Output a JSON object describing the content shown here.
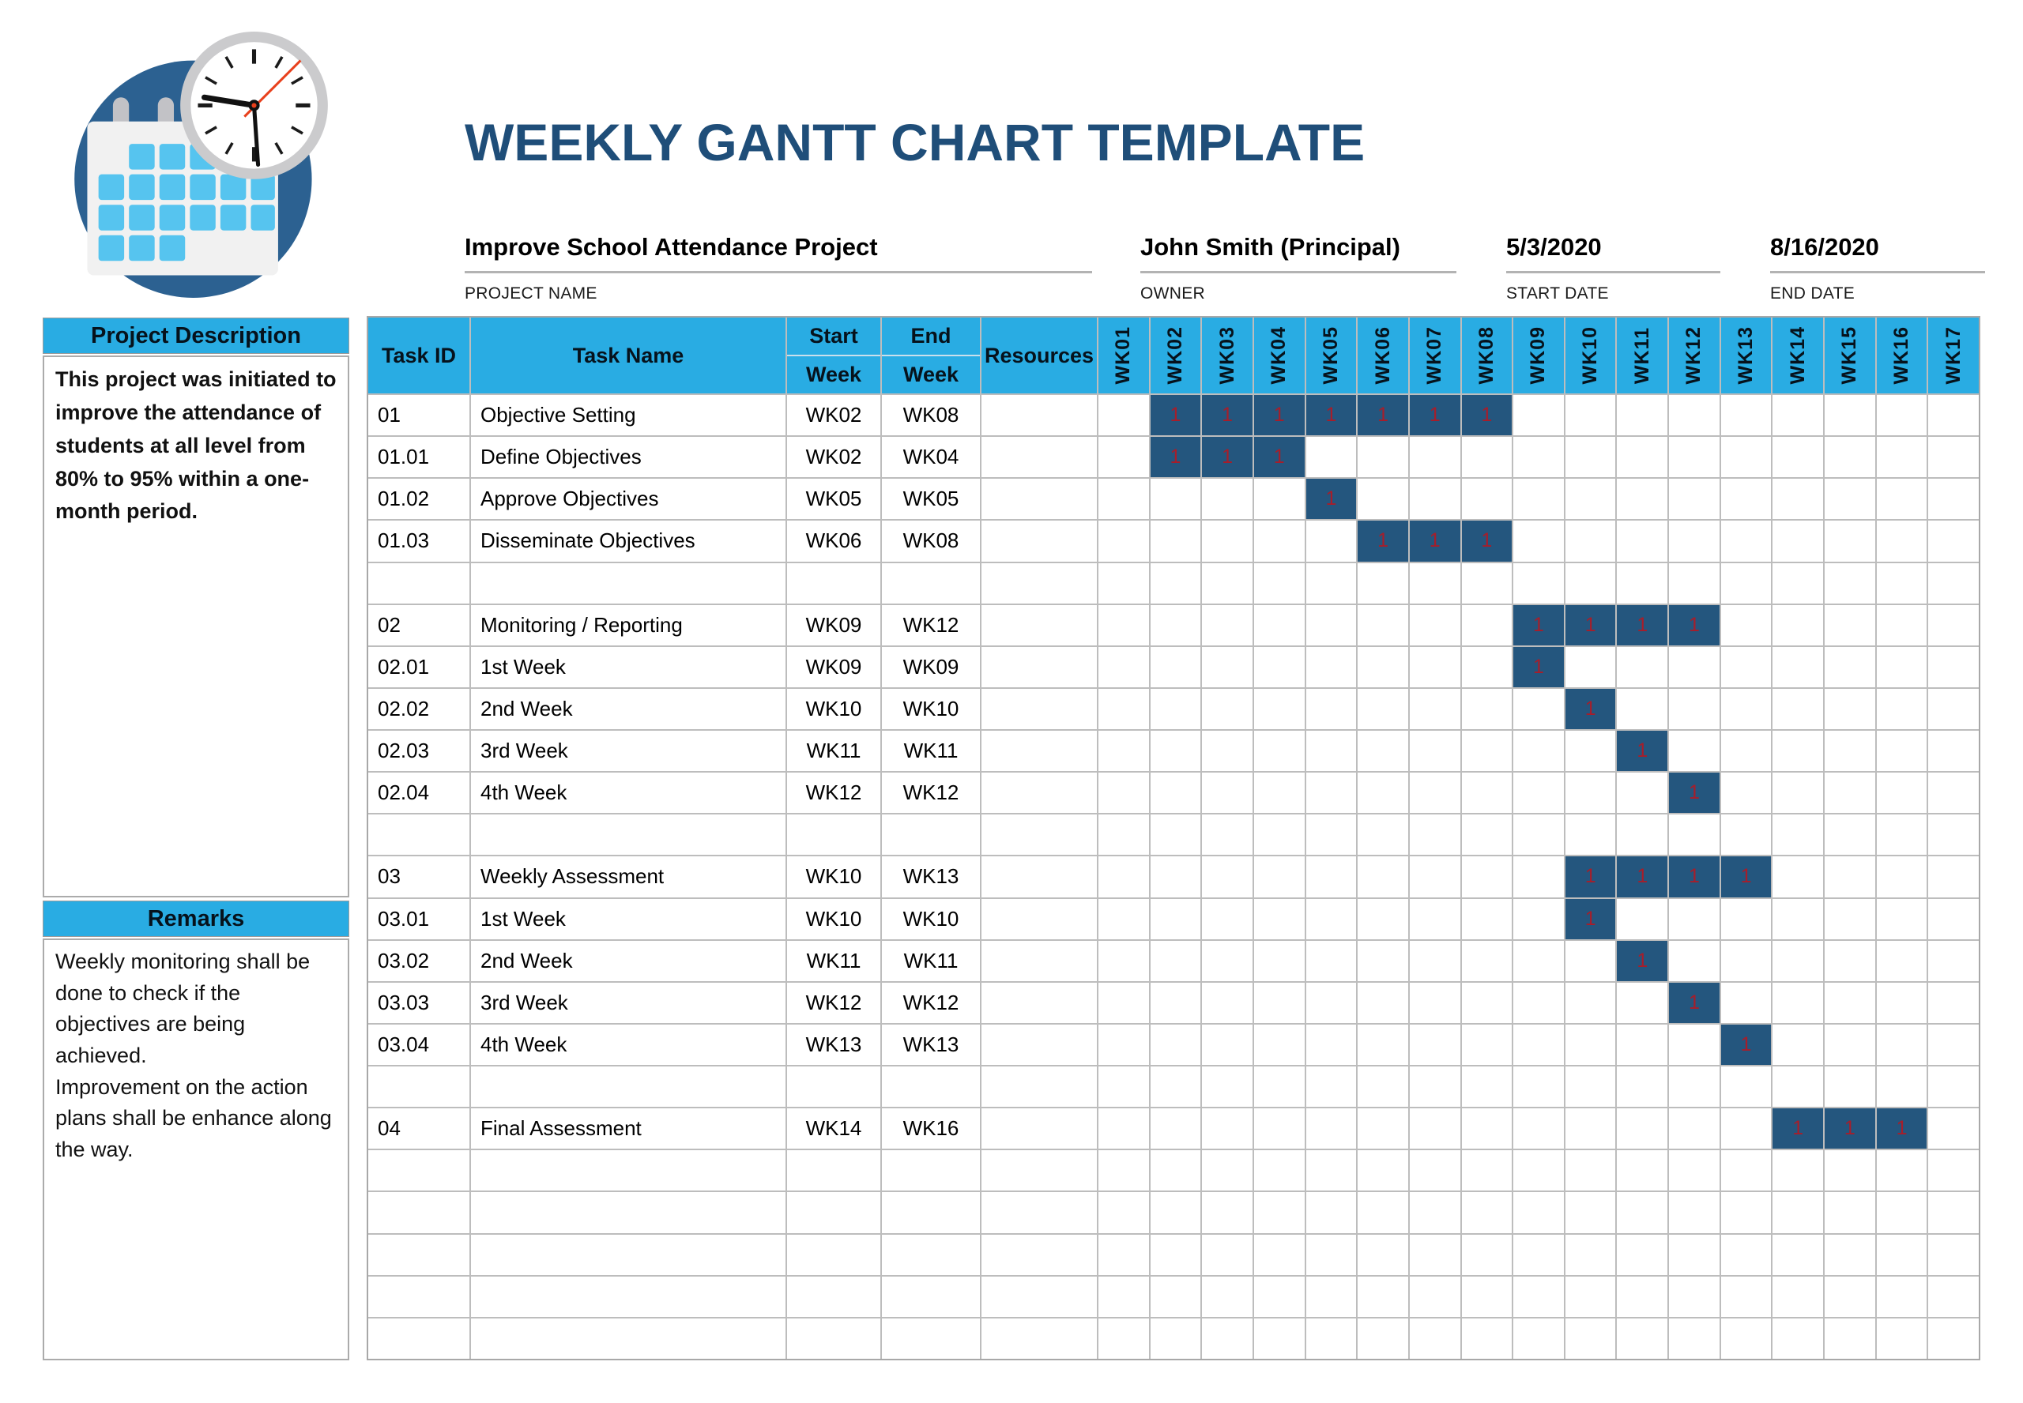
{
  "title": "WEEKLY GANTT CHART TEMPLATE",
  "info": {
    "project_name": {
      "value": "Improve School Attendance Project",
      "label": "PROJECT NAME"
    },
    "owner": {
      "value": "John Smith (Principal)",
      "label": "OWNER"
    },
    "start_date": {
      "value": "5/3/2020",
      "label": "START DATE"
    },
    "end_date": {
      "value": "8/16/2020",
      "label": "END DATE"
    }
  },
  "sidebar": {
    "description_header": "Project Description",
    "description_body": "This project was initiated to improve the attendance of students at all level from 80% to 95% within a one-month period.",
    "remarks_header": "Remarks",
    "remarks_lines": [
      "Weekly monitoring shall be done to check if the objectives are being achieved.",
      "Improvement on the action plans shall be enhance along the way."
    ]
  },
  "chart_data": {
    "type": "table",
    "title": "WEEKLY GANTT CHART TEMPLATE",
    "column_headers": {
      "task_id": "Task ID",
      "task_name": "Task Name",
      "start_top": "Start",
      "start_bottom": "Week",
      "end_top": "End",
      "end_bottom": "Week",
      "resources": "Resources"
    },
    "weeks": [
      "WK01",
      "WK02",
      "WK03",
      "WK04",
      "WK05",
      "WK06",
      "WK07",
      "WK08",
      "WK09",
      "WK10",
      "WK11",
      "WK12",
      "WK13",
      "WK14",
      "WK15",
      "WK16",
      "WK17"
    ],
    "bar_cell_value": "1",
    "tasks": [
      {
        "task_id": "01",
        "task_name": "Objective Setting",
        "start_week": "WK02",
        "end_week": "WK08",
        "resources": "",
        "bar_from": 2,
        "bar_to": 8
      },
      {
        "task_id": "01.01",
        "task_name": "Define Objectives",
        "start_week": "WK02",
        "end_week": "WK04",
        "resources": "",
        "bar_from": 2,
        "bar_to": 4
      },
      {
        "task_id": "01.02",
        "task_name": "Approve Objectives",
        "start_week": "WK05",
        "end_week": "WK05",
        "resources": "",
        "bar_from": 5,
        "bar_to": 5
      },
      {
        "task_id": "01.03",
        "task_name": "Disseminate Objectives",
        "start_week": "WK06",
        "end_week": "WK08",
        "resources": "",
        "bar_from": 6,
        "bar_to": 8
      },
      {
        "blank": true
      },
      {
        "task_id": "02",
        "task_name": "Monitoring / Reporting",
        "start_week": "WK09",
        "end_week": "WK12",
        "resources": "",
        "bar_from": 9,
        "bar_to": 12
      },
      {
        "task_id": "02.01",
        "task_name": "1st Week",
        "start_week": "WK09",
        "end_week": "WK09",
        "resources": "",
        "bar_from": 9,
        "bar_to": 9
      },
      {
        "task_id": "02.02",
        "task_name": "2nd Week",
        "start_week": "WK10",
        "end_week": "WK10",
        "resources": "",
        "bar_from": 10,
        "bar_to": 10
      },
      {
        "task_id": "02.03",
        "task_name": "3rd Week",
        "start_week": "WK11",
        "end_week": "WK11",
        "resources": "",
        "bar_from": 11,
        "bar_to": 11
      },
      {
        "task_id": "02.04",
        "task_name": "4th Week",
        "start_week": "WK12",
        "end_week": "WK12",
        "resources": "",
        "bar_from": 12,
        "bar_to": 12
      },
      {
        "blank": true
      },
      {
        "task_id": "03",
        "task_name": "Weekly Assessment",
        "start_week": "WK10",
        "end_week": "WK13",
        "resources": "",
        "bar_from": 10,
        "bar_to": 13
      },
      {
        "task_id": "03.01",
        "task_name": "1st Week",
        "start_week": "WK10",
        "end_week": "WK10",
        "resources": "",
        "bar_from": 10,
        "bar_to": 10
      },
      {
        "task_id": "03.02",
        "task_name": "2nd Week",
        "start_week": "WK11",
        "end_week": "WK11",
        "resources": "",
        "bar_from": 11,
        "bar_to": 11
      },
      {
        "task_id": "03.03",
        "task_name": "3rd Week",
        "start_week": "WK12",
        "end_week": "WK12",
        "resources": "",
        "bar_from": 12,
        "bar_to": 12
      },
      {
        "task_id": "03.04",
        "task_name": "4th Week",
        "start_week": "WK13",
        "end_week": "WK13",
        "resources": "",
        "bar_from": 13,
        "bar_to": 13
      },
      {
        "blank": true
      },
      {
        "task_id": "04",
        "task_name": "Final Assessment",
        "start_week": "WK14",
        "end_week": "WK16",
        "resources": "",
        "bar_from": 14,
        "bar_to": 16
      },
      {
        "blank": true
      },
      {
        "blank": true
      },
      {
        "blank": true
      },
      {
        "blank": true
      },
      {
        "blank": true
      }
    ]
  },
  "colors": {
    "title_navy": "#1F4E79",
    "header_cyan": "#29ACE3",
    "bar_navy": "#24567E",
    "bar_value_red": "#A61E2B",
    "grid_gray": "#BDBDBD"
  }
}
